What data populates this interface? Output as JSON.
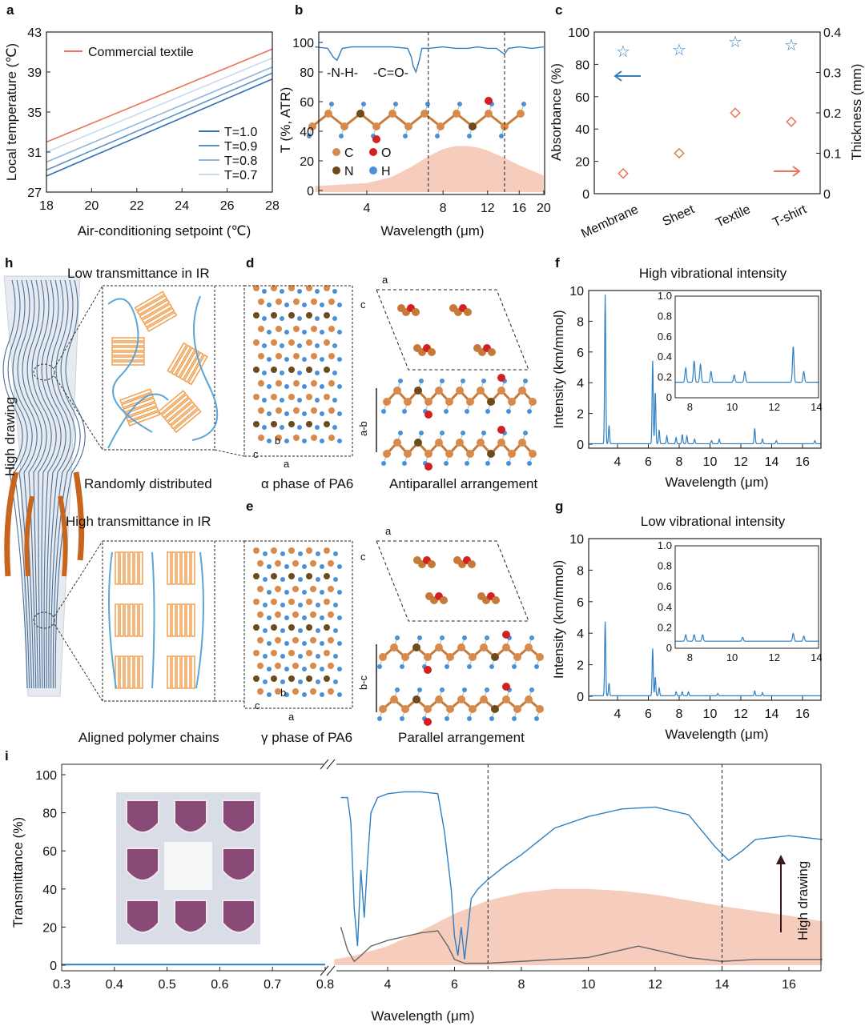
{
  "panel_labels": {
    "a": "a",
    "b": "b",
    "c": "c",
    "d": "d",
    "e": "e",
    "f": "f",
    "g": "g",
    "h": "h",
    "i": "i"
  },
  "schematic": {
    "top_title": "Low transmittance in IR",
    "bottom_title": "High transmittance in IR",
    "top_caption": "Randomly distributed",
    "bottom_caption": "Aligned polymer chains",
    "drawing_label": "High drawing",
    "alpha_caption": "α phase of PA6",
    "gamma_caption": "γ phase of PA6",
    "anti_caption": "Antiparallel arrangement",
    "para_caption": "Parallel arrangement",
    "axis_a": "a",
    "axis_b": "b",
    "axis_c": "c",
    "ab": "a-b",
    "bc": "b-c"
  },
  "legend_atoms": {
    "C": "C",
    "O": "O",
    "N": "N",
    "H": "H"
  },
  "colors": {
    "blue": "#2f7fc1",
    "orange": "#e8755a",
    "fill": "#f6cdbd",
    "purple": "#8a4a78"
  },
  "chart_data": [
    {
      "id": "a",
      "type": "line",
      "xlabel": "Air-conditioning setpoint (℃)",
      "ylabel": "Local temperature (℃)",
      "xlim": [
        18,
        28
      ],
      "ylim": [
        27,
        43
      ],
      "xticks": [
        "18",
        "20",
        "22",
        "24",
        "26",
        "28"
      ],
      "yticks": [
        "27",
        "31",
        "35",
        "39",
        "43"
      ],
      "series": [
        {
          "name": "Commercial textile",
          "x": [
            18,
            28
          ],
          "y": [
            32.0,
            41.3
          ],
          "color": "#e8755a"
        },
        {
          "name": "T=1.0",
          "x": [
            18,
            28
          ],
          "y": [
            28.6,
            38.3
          ],
          "color": "#2f6fb3"
        },
        {
          "name": "T=0.9",
          "x": [
            18,
            28
          ],
          "y": [
            29.2,
            38.9
          ],
          "color": "#5b93c9"
        },
        {
          "name": "T=0.8",
          "x": [
            18,
            28
          ],
          "y": [
            30.0,
            39.5
          ],
          "color": "#8fb6dc"
        },
        {
          "name": "T=0.7",
          "x": [
            18,
            28
          ],
          "y": [
            31.0,
            40.4
          ],
          "color": "#c8dced"
        }
      ]
    },
    {
      "id": "b",
      "type": "line",
      "xlabel": "Wavelength (μm)",
      "ylabel": "T (%, ATR)",
      "xscale": "log",
      "xlim": [
        2.5,
        20
      ],
      "ylim": [
        0,
        105
      ],
      "xticks": [
        "4",
        "8",
        "12",
        "16",
        "20"
      ],
      "yticks": [
        "0",
        "20",
        "40",
        "60",
        "80",
        "100"
      ],
      "annotations": [
        "-N-H-",
        "-C=O-"
      ],
      "vlines": [
        7,
        14
      ],
      "series": [
        {
          "name": "PA6",
          "x": [
            2.5,
            2.8,
            2.95,
            3.05,
            3.2,
            3.5,
            4,
            5,
            5.8,
            6.0,
            6.1,
            6.25,
            6.45,
            6.6,
            7,
            8,
            9,
            10,
            11,
            12,
            13,
            14,
            14.5,
            16,
            18,
            20
          ],
          "y": [
            97,
            96,
            90,
            88,
            96,
            97,
            97,
            97,
            96,
            90,
            84,
            80,
            88,
            96,
            96,
            97,
            96,
            96,
            97,
            96,
            96,
            92,
            96,
            97,
            96,
            97
          ]
        },
        {
          "name": "blackbody",
          "x": [
            2.5,
            4,
            5,
            6,
            7,
            8,
            9,
            10,
            11,
            12,
            14,
            16,
            20
          ],
          "y": [
            3,
            5,
            9,
            16,
            23,
            28,
            30,
            30,
            29,
            27,
            22,
            17,
            10
          ]
        }
      ]
    },
    {
      "id": "c",
      "type": "scatter",
      "ylabel": "Absorbance (%)",
      "y2label": "Thickness (mm)",
      "categories": [
        "Membrane",
        "Sheet",
        "Textile",
        "T-shirt"
      ],
      "ylim": [
        0,
        100
      ],
      "y2lim": [
        0,
        0.4
      ],
      "yticks": [
        "0",
        "20",
        "40",
        "60",
        "80",
        "100"
      ],
      "y2ticks": [
        "0",
        "0.1",
        "0.2",
        "0.3",
        "0.4"
      ],
      "series": [
        {
          "name": "Absorbance",
          "axis": "left",
          "values": [
            88,
            89,
            94,
            92
          ]
        },
        {
          "name": "Thickness",
          "axis": "right",
          "values": [
            0.05,
            0.1,
            0.2,
            0.178
          ]
        }
      ]
    },
    {
      "id": "f",
      "type": "line",
      "title": "High vibrational intensity",
      "xlabel": "Wavelength (μm)",
      "ylabel": "Intensity (km/mmol)",
      "xlim": [
        2.1,
        17.2
      ],
      "ylim": [
        0,
        10
      ],
      "xticks": [
        "4",
        "6",
        "8",
        "10",
        "12",
        "14",
        "16"
      ],
      "yticks": [
        "0",
        "2",
        "4",
        "6",
        "8",
        "10"
      ],
      "peaks": [
        [
          3.2,
          9.7
        ],
        [
          3.45,
          1.2
        ],
        [
          6.28,
          5.4
        ],
        [
          6.45,
          3.4
        ],
        [
          6.7,
          0.9
        ],
        [
          7.2,
          0.5
        ],
        [
          7.8,
          0.4
        ],
        [
          8.2,
          0.6
        ],
        [
          8.5,
          0.5
        ],
        [
          9.0,
          0.3
        ],
        [
          10.1,
          0.2
        ],
        [
          10.6,
          0.3
        ],
        [
          12.9,
          1.0
        ],
        [
          13.4,
          0.3
        ],
        [
          14.3,
          0.2
        ],
        [
          16.8,
          0.2
        ]
      ],
      "inset": {
        "xlim": [
          7.3,
          14.1
        ],
        "ylim": [
          0,
          1.0
        ],
        "xticks": [
          "8",
          "10",
          "12",
          "14"
        ],
        "yticks": [
          "0",
          "0.2",
          "0.4",
          "0.6",
          "0.8",
          "1.0"
        ]
      }
    },
    {
      "id": "g",
      "type": "line",
      "title": "Low vibrational intensity",
      "xlabel": "Wavelength (μm)",
      "ylabel": "Intensity (km/mmol)",
      "xlim": [
        2.1,
        17.2
      ],
      "ylim": [
        0,
        10
      ],
      "xticks": [
        "4",
        "6",
        "8",
        "10",
        "12",
        "14",
        "16"
      ],
      "yticks": [
        "0",
        "2",
        "4",
        "6",
        "8",
        "10"
      ],
      "peaks": [
        [
          3.2,
          4.7
        ],
        [
          3.45,
          0.8
        ],
        [
          6.28,
          3.0
        ],
        [
          6.45,
          1.2
        ],
        [
          6.7,
          0.5
        ],
        [
          7.8,
          0.25
        ],
        [
          8.2,
          0.25
        ],
        [
          8.6,
          0.25
        ],
        [
          10.5,
          0.15
        ],
        [
          12.9,
          0.3
        ],
        [
          13.4,
          0.2
        ]
      ],
      "inset": {
        "xlim": [
          7.3,
          14.1
        ],
        "ylim": [
          0,
          1.0
        ],
        "xticks": [
          "8",
          "10",
          "12",
          "14"
        ],
        "yticks": [
          "0",
          "0.2",
          "0.4",
          "0.6",
          "0.8",
          "1.0"
        ]
      }
    },
    {
      "id": "i",
      "type": "line",
      "xlabel": "Wavelength (μm)",
      "ylabel": "Transmittance (%)",
      "ylim": [
        0,
        100
      ],
      "xlim_left": [
        0.3,
        0.8
      ],
      "xlim_right": [
        2.4,
        17
      ],
      "xticks_left": [
        "0.3",
        "0.4",
        "0.5",
        "0.6",
        "0.7",
        "0.8"
      ],
      "xticks_right": [
        "4",
        "6",
        "8",
        "10",
        "12",
        "14",
        "16"
      ],
      "yticks": [
        "0",
        "20",
        "40",
        "60",
        "80",
        "100"
      ],
      "vlines": [
        7,
        14
      ],
      "arrow_label": "High drawing",
      "series": [
        {
          "name": "before",
          "x": [
            0.3,
            0.8
          ],
          "y": [
            0.3,
            0.3
          ]
        },
        {
          "name": "after",
          "x": [
            2.6,
            2.8,
            2.9,
            3.0,
            3.1,
            3.2,
            3.3,
            3.4,
            3.5,
            3.7,
            4,
            4.5,
            5,
            5.5,
            5.7,
            5.9,
            6.0,
            6.1,
            6.2,
            6.3,
            6.5,
            6.7,
            7,
            7.5,
            8,
            8.5,
            9,
            10,
            11,
            12,
            13,
            13.8,
            14.2,
            14.6,
            15,
            16,
            17
          ],
          "y": [
            88,
            88,
            75,
            30,
            10,
            50,
            25,
            55,
            80,
            88,
            90,
            91,
            91,
            90,
            70,
            40,
            15,
            5,
            20,
            3,
            35,
            40,
            45,
            52,
            58,
            65,
            72,
            78,
            82,
            83,
            79,
            62,
            55,
            60,
            66,
            68,
            66
          ]
        },
        {
          "name": "before_ir",
          "x": [
            2.6,
            2.8,
            3.0,
            3.2,
            3.5,
            4,
            4.5,
            5,
            5.5,
            5.8,
            6.0,
            6.3,
            7,
            8,
            9,
            10,
            11,
            11.5,
            12,
            13,
            14,
            15,
            16,
            17
          ],
          "y": [
            20,
            8,
            2,
            5,
            10,
            13,
            15,
            17,
            18,
            10,
            3,
            1,
            1,
            2,
            3,
            4,
            8,
            10,
            8,
            4,
            2,
            3,
            3,
            3
          ]
        },
        {
          "name": "blackbody",
          "x": [
            2.4,
            3,
            4,
            5,
            6,
            7,
            8,
            9,
            10,
            11,
            12,
            14,
            16,
            17
          ],
          "y": [
            3,
            5,
            10,
            18,
            27,
            34,
            38,
            40,
            40,
            39,
            37,
            31,
            26,
            23
          ]
        }
      ]
    }
  ]
}
